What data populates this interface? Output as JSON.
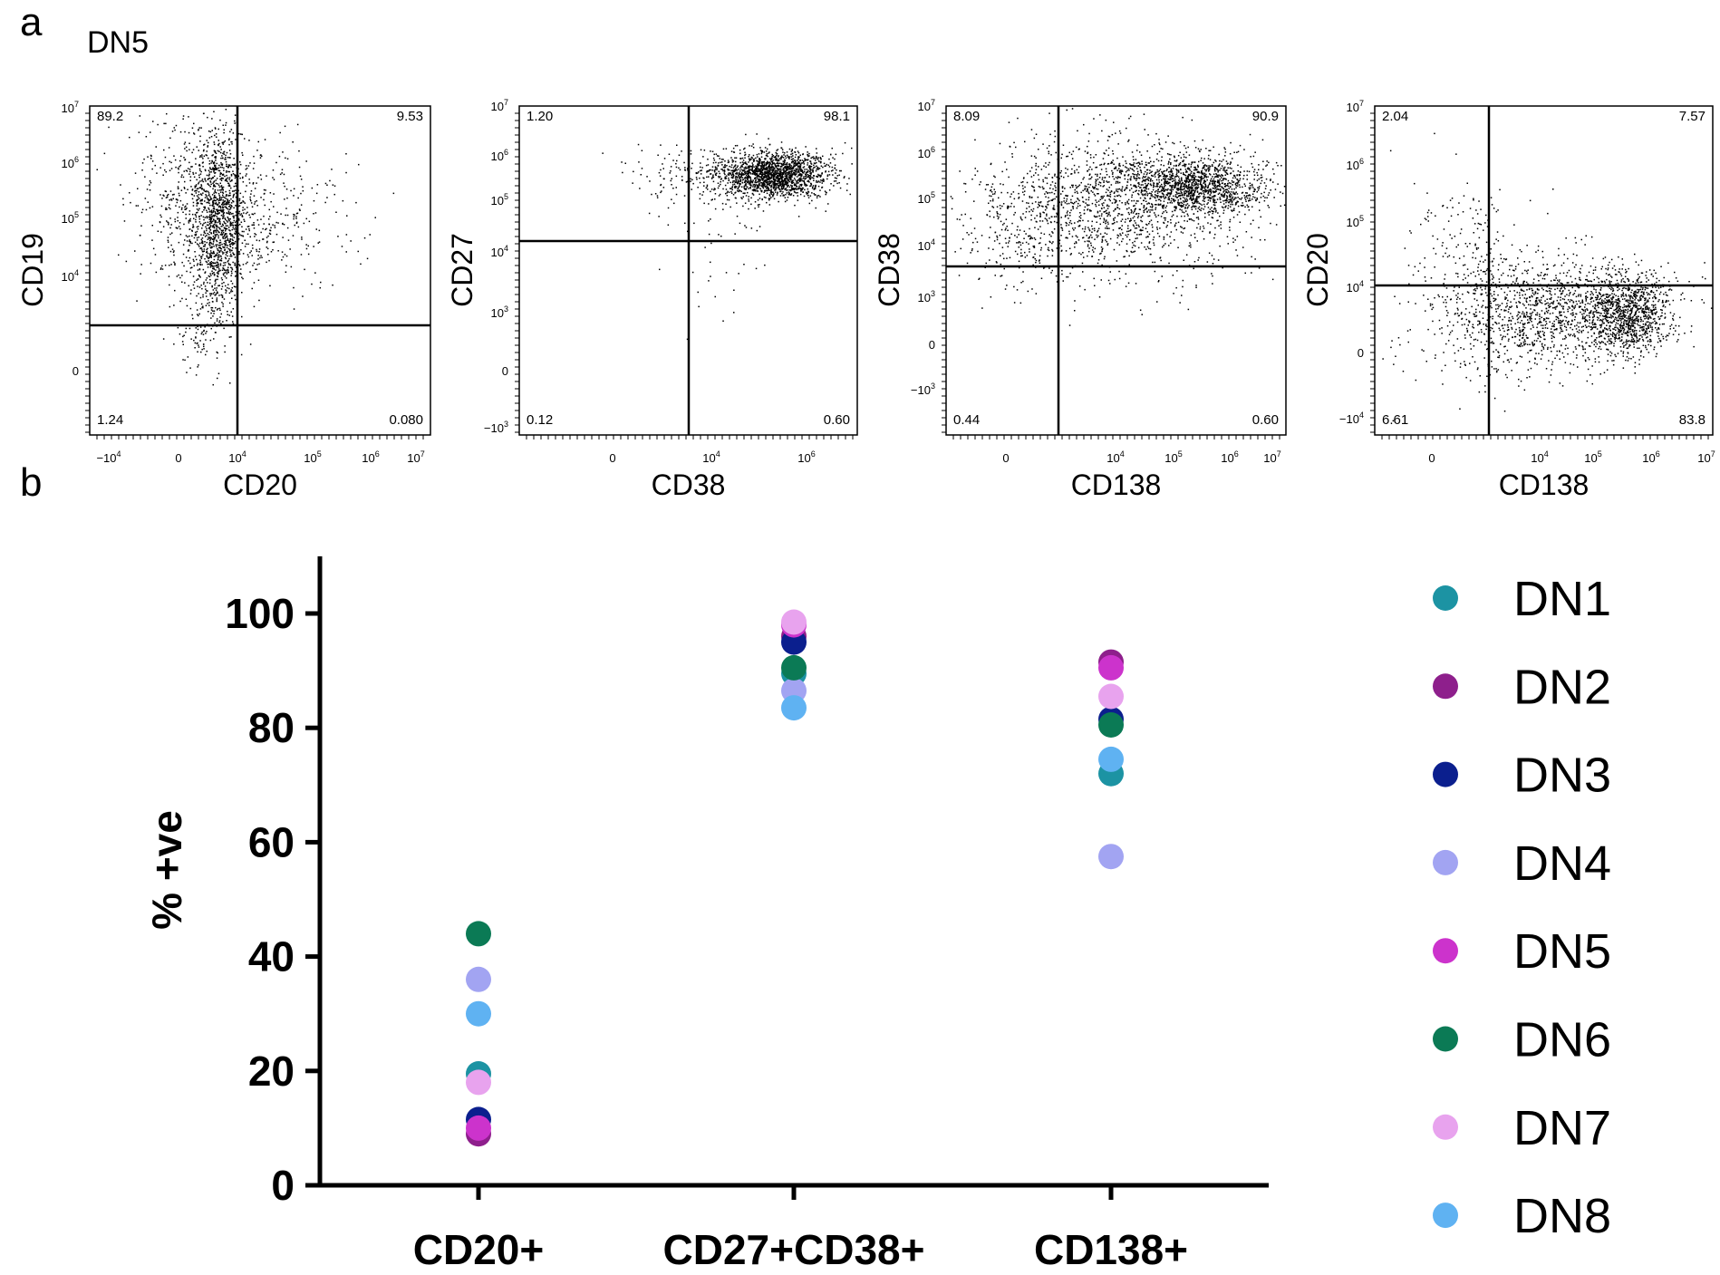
{
  "panel_a_label": "a",
  "panel_b_label": "b",
  "population_label": "DN5",
  "chart_data": [
    {
      "type": "scatter",
      "xlabel": "CD20",
      "ylabel": "CD19",
      "quadrants": {
        "top_left": "89.2",
        "top_right": "9.53",
        "bottom_left": "1.24",
        "bottom_right": "0.080"
      },
      "x_ticks": [
        "-10^4",
        "0",
        "10^4",
        "10^5",
        "10^6",
        "10^7"
      ],
      "y_ticks": [
        "0",
        "10^4",
        "10^5",
        "10^6",
        "10^7"
      ]
    },
    {
      "type": "scatter",
      "xlabel": "CD38",
      "ylabel": "CD27",
      "quadrants": {
        "top_left": "1.20",
        "top_right": "98.1",
        "bottom_left": "0.12",
        "bottom_right": "0.60"
      },
      "x_ticks": [
        "0",
        "10^4",
        "10^6"
      ],
      "y_ticks": [
        "-10^3",
        "0",
        "10^3",
        "10^4",
        "10^5",
        "10^6",
        "10^7"
      ]
    },
    {
      "type": "scatter",
      "xlabel": "CD138",
      "ylabel": "CD38",
      "quadrants": {
        "top_left": "8.09",
        "top_right": "90.9",
        "bottom_left": "0.44",
        "bottom_right": "0.60"
      },
      "x_ticks": [
        "0",
        "10^4",
        "10^5",
        "10^6",
        "10^7"
      ],
      "y_ticks": [
        "-10^3",
        "0",
        "10^3",
        "10^4",
        "10^5",
        "10^6",
        "10^7"
      ]
    },
    {
      "type": "scatter",
      "xlabel": "CD138",
      "ylabel": "CD20",
      "quadrants": {
        "top_left": "2.04",
        "top_right": "7.57",
        "bottom_left": "6.61",
        "bottom_right": "83.8"
      },
      "x_ticks": [
        "0",
        "10^4",
        "10^5",
        "10^6",
        "10^7"
      ],
      "y_ticks": [
        "-10^4",
        "0",
        "10^4",
        "10^5",
        "10^6",
        "10^7"
      ]
    },
    {
      "type": "scatter",
      "ylabel": "% +ve",
      "categories": [
        "CD20+",
        "CD27+CD38+",
        "CD138+"
      ],
      "ylim": [
        0,
        110
      ],
      "y_ticks": [
        0,
        20,
        40,
        60,
        80,
        100
      ],
      "legend_position": "right",
      "series": [
        {
          "name": "DN1",
          "color": "#1C93A3",
          "values": [
            19.5,
            89.5,
            72
          ]
        },
        {
          "name": "DN2",
          "color": "#8E1F8C",
          "values": [
            9,
            96,
            91.5
          ]
        },
        {
          "name": "DN3",
          "color": "#0B1F8E",
          "values": [
            11.5,
            95,
            81.5
          ]
        },
        {
          "name": "DN4",
          "color": "#A2A4F2",
          "values": [
            36,
            86.5,
            57.5
          ]
        },
        {
          "name": "DN5",
          "color": "#CC33CC",
          "values": [
            10,
            98,
            90.5
          ]
        },
        {
          "name": "DN6",
          "color": "#0B7A55",
          "values": [
            44,
            90.5,
            80.5
          ]
        },
        {
          "name": "DN7",
          "color": "#E8A3EE",
          "values": [
            18,
            98.5,
            85.5
          ]
        },
        {
          "name": "DN8",
          "color": "#5FB2F2",
          "values": [
            30,
            83.5,
            74.5
          ]
        }
      ]
    }
  ]
}
